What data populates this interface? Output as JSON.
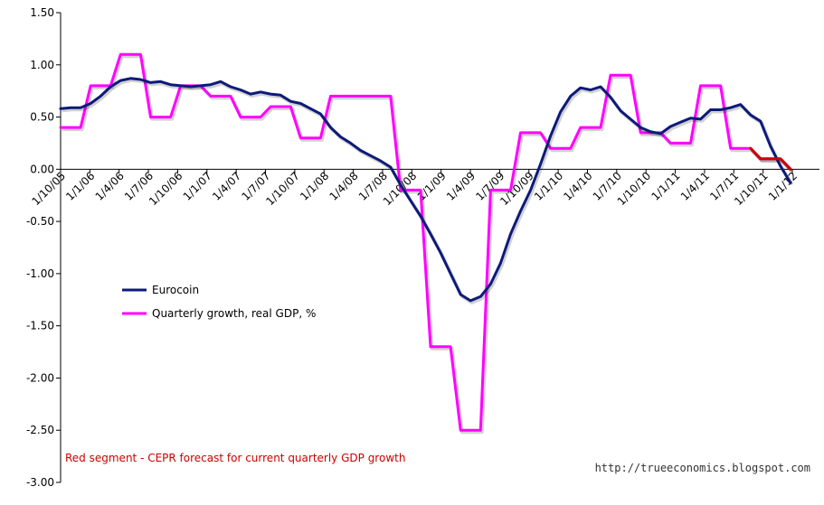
{
  "chart_data": {
    "type": "line",
    "ylim": [
      -3.0,
      1.5
    ],
    "yticks": [
      "1.50",
      "1.00",
      "0.50",
      "0.00",
      "-0.50",
      "-1.00",
      "-1.50",
      "-2.00",
      "-2.50",
      "-3.00"
    ],
    "x_tick_labels": [
      "1/10/05",
      "1/1/06",
      "1/4/06",
      "1/7/06",
      "1/10/06",
      "1/1/07",
      "1/4/07",
      "1/7/07",
      "1/10/07",
      "1/1/08",
      "1/4/08",
      "1/7/08",
      "1/10/08",
      "1/1/09",
      "1/4/09",
      "1/7/09",
      "1/10/09",
      "1/1/10",
      "1/4/10",
      "1/7/10",
      "1/10/10",
      "1/1/11",
      "1/4/11",
      "1/7/11",
      "1/10/11",
      "1/1/12"
    ],
    "grid": false,
    "legend_position": "lower-left",
    "series": [
      {
        "name": "Eurocoin",
        "color": "#0d1a7a",
        "values": [
          0.58,
          0.59,
          0.59,
          0.63,
          0.7,
          0.79,
          0.85,
          0.87,
          0.86,
          0.83,
          0.84,
          0.81,
          0.8,
          0.79,
          0.8,
          0.81,
          0.84,
          0.79,
          0.76,
          0.72,
          0.74,
          0.72,
          0.71,
          0.65,
          0.63,
          0.58,
          0.53,
          0.4,
          0.31,
          0.25,
          0.18,
          0.13,
          0.08,
          0.02,
          -0.15,
          -0.3,
          -0.45,
          -0.62,
          -0.8,
          -1.0,
          -1.2,
          -1.26,
          -1.22,
          -1.1,
          -0.9,
          -0.62,
          -0.4,
          -0.2,
          0.05,
          0.32,
          0.55,
          0.7,
          0.78,
          0.76,
          0.79,
          0.69,
          0.56,
          0.48,
          0.4,
          0.36,
          0.34,
          0.41,
          0.45,
          0.49,
          0.48,
          0.57,
          0.57,
          0.59,
          0.62,
          0.52,
          0.46,
          0.22,
          0.03,
          -0.13
        ]
      },
      {
        "name": "Quarterly growth, real GDP, %",
        "color": "#ff00ff",
        "values": [
          0.4,
          0.4,
          0.4,
          0.8,
          0.8,
          0.8,
          1.1,
          1.1,
          1.1,
          0.5,
          0.5,
          0.5,
          0.8,
          0.8,
          0.8,
          0.7,
          0.7,
          0.7,
          0.5,
          0.5,
          0.5,
          0.6,
          0.6,
          0.6,
          0.3,
          0.3,
          0.3,
          0.7,
          0.7,
          0.7,
          0.7,
          0.7,
          0.7,
          0.7,
          -0.2,
          -0.2,
          -0.2,
          -1.7,
          -1.7,
          -1.7,
          -2.5,
          -2.5,
          -2.5,
          -0.2,
          -0.2,
          -0.2,
          0.35,
          0.35,
          0.35,
          0.2,
          0.2,
          0.2,
          0.4,
          0.4,
          0.4,
          0.9,
          0.9,
          0.9,
          0.35,
          0.35,
          0.35,
          0.25,
          0.25,
          0.25,
          0.8,
          0.8,
          0.8,
          0.2,
          0.2,
          0.2,
          0.1,
          0.1,
          0.1,
          0.0
        ]
      },
      {
        "name": "CEPR forecast",
        "color": "#cc0000",
        "start_index": 69,
        "values": [
          0.2,
          0.1,
          0.1,
          0.1,
          0.0
        ]
      }
    ],
    "annotation": "Red segment - CEPR forecast for current quarterly GDP growth",
    "source_text": "http://trueeconomics.blogspot.com"
  }
}
